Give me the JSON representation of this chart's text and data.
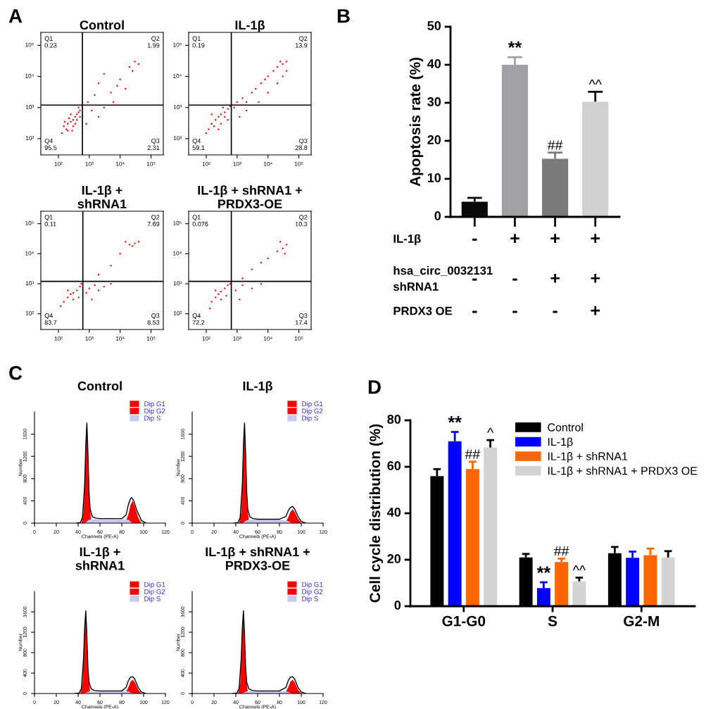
{
  "chart_data": [
    {
      "type": "scatter",
      "title": "Control",
      "log": "xy",
      "marker": "circle",
      "xlim": [
        27,
        250000
      ],
      "ylim": [
        30,
        260000
      ],
      "xticks": [
        {
          "value": 100,
          "label": "10²"
        },
        {
          "value": 1000,
          "label": "10³"
        },
        {
          "value": 10000,
          "label": "10⁴"
        },
        {
          "value": 100000,
          "label": "10⁵"
        }
      ],
      "yticks": [
        {
          "value": 100,
          "label": "10²"
        },
        {
          "value": 1000,
          "label": "10³"
        },
        {
          "value": 10000,
          "label": "10⁴"
        },
        {
          "value": 100000,
          "label": "10⁵"
        }
      ],
      "ref_lines": [
        {
          "axis": "x",
          "value": 600,
          "color": "#000000"
        },
        {
          "axis": "y",
          "value": 1200,
          "color": "#000000"
        }
      ],
      "annotations": [
        "Q1\n0.23",
        "Q2\n1.99",
        "Q3\n2.31",
        "Q4\n95.5",
        "A"
      ],
      "series": [
        {
          "color": "#ff0000",
          "x": [
            150,
            200,
            250,
            300,
            350,
            400,
            450,
            500,
            180,
            220,
            300,
            400,
            130,
            250,
            450,
            350,
            200,
            160,
            500,
            280,
            900,
            1500,
            3000,
            5000,
            8000,
            10000,
            20000,
            30000,
            40000,
            25000,
            2000,
            1200,
            2000,
            6000,
            15000,
            800,
            3000
          ],
          "values": [
            250,
            300,
            350,
            400,
            500,
            600,
            700,
            800,
            200,
            450,
            250,
            400,
            150,
            600,
            1000,
            300,
            180,
            350,
            500,
            180,
            1500,
            2500,
            1000,
            3000,
            5000,
            8000,
            20000,
            30000,
            25000,
            15000,
            6000,
            800,
            500,
            1500,
            4000,
            300,
            12000
          ]
        }
      ]
    },
    {
      "type": "scatter",
      "title": "IL-1β",
      "log": "xy",
      "marker": "circle",
      "xlim": [
        27,
        250000
      ],
      "ylim": [
        30,
        260000
      ],
      "xticks": [
        {
          "value": 100,
          "label": "10²"
        },
        {
          "value": 1000,
          "label": "10³"
        },
        {
          "value": 10000,
          "label": "10⁴"
        },
        {
          "value": 100000,
          "label": "10⁵"
        }
      ],
      "yticks": [
        {
          "value": 100,
          "label": "10²"
        },
        {
          "value": 1000,
          "label": "10³"
        },
        {
          "value": 10000,
          "label": "10⁴"
        },
        {
          "value": 100000,
          "label": "10⁵"
        }
      ],
      "ref_lines": [
        {
          "axis": "x",
          "value": 650,
          "color": "#000000"
        },
        {
          "axis": "y",
          "value": 1200,
          "color": "#000000"
        }
      ],
      "annotations": [
        "Q1\n0.19",
        "Q2\n13.9",
        "Q3\n28.8",
        "Q4\n59.1"
      ],
      "series": [
        {
          "color": "#ff0000",
          "x": [
            120,
            150,
            200,
            250,
            300,
            400,
            500,
            100,
            180,
            300,
            400,
            250,
            150,
            500,
            350,
            600,
            800,
            1000,
            1500,
            2000,
            3000,
            4000,
            6000,
            8000,
            10000,
            15000,
            20000,
            30000,
            40000,
            25000,
            2000,
            5000,
            10000,
            20000,
            30000,
            1200,
            40000
          ],
          "values": [
            200,
            300,
            400,
            500,
            600,
            700,
            900,
            150,
            250,
            300,
            500,
            200,
            600,
            400,
            1000,
            1100,
            1000,
            1500,
            2000,
            1500,
            3000,
            4000,
            6000,
            8000,
            10000,
            15000,
            20000,
            25000,
            30000,
            30000,
            800,
            1500,
            3000,
            6000,
            10000,
            500,
            15000
          ]
        }
      ]
    },
    {
      "type": "scatter",
      "title": "IL-1β +\nshRNA1",
      "log": "xy",
      "marker": "circle",
      "xlim": [
        27,
        250000
      ],
      "ylim": [
        30,
        260000
      ],
      "xticks": [
        {
          "value": 100,
          "label": "10²"
        },
        {
          "value": 1000,
          "label": "10³"
        },
        {
          "value": 10000,
          "label": "10⁴"
        },
        {
          "value": 100000,
          "label": "10⁵"
        }
      ],
      "yticks": [
        {
          "value": 100,
          "label": "10²"
        },
        {
          "value": 1000,
          "label": "10³"
        },
        {
          "value": 10000,
          "label": "10⁴"
        },
        {
          "value": 100000,
          "label": "10⁵"
        }
      ],
      "ref_lines": [
        {
          "axis": "x",
          "value": 620,
          "color": "#000000"
        },
        {
          "axis": "y",
          "value": 1200,
          "color": "#000000"
        }
      ],
      "annotations": [
        "Q1\n0.11",
        "Q2\n7.69",
        "Q3\n8.53",
        "Q4\n83.7"
      ],
      "series": [
        {
          "color": "#ff0000",
          "x": [
            150,
            200,
            250,
            300,
            400,
            500,
            120,
            300,
            200,
            450,
            550,
            800,
            1000,
            1500,
            2000,
            3000,
            1200,
            5000,
            2000,
            5000,
            10000,
            20000,
            30000,
            25000,
            40000,
            15000
          ],
          "values": [
            250,
            350,
            450,
            500,
            600,
            800,
            180,
            300,
            600,
            350,
            1000,
            500,
            700,
            900,
            600,
            800,
            300,
            1000,
            2000,
            4000,
            10000,
            20000,
            22000,
            18000,
            25000,
            25000
          ]
        }
      ]
    },
    {
      "type": "scatter",
      "title": "IL-1β + shRNA1 +\nPRDX3-OE",
      "log": "xy",
      "marker": "circle",
      "xlim": [
        27,
        250000
      ],
      "ylim": [
        30,
        260000
      ],
      "xticks": [
        {
          "value": 100,
          "label": "10²"
        },
        {
          "value": 1000,
          "label": "10³"
        },
        {
          "value": 10000,
          "label": "10⁴"
        },
        {
          "value": 100000,
          "label": "10⁵"
        }
      ],
      "yticks": [
        {
          "value": 100,
          "label": "10²"
        },
        {
          "value": 1000,
          "label": "10³"
        },
        {
          "value": 10000,
          "label": "10⁴"
        },
        {
          "value": 100000,
          "label": "10⁵"
        }
      ],
      "ref_lines": [
        {
          "axis": "x",
          "value": 650,
          "color": "#000000"
        },
        {
          "axis": "y",
          "value": 1200,
          "color": "#000000"
        }
      ],
      "annotations": [
        "Q1\n0.076",
        "Q2\n10.3",
        "Q3\n17.4",
        "Q4\n72.2"
      ],
      "series": [
        {
          "color": "#ff0000",
          "x": [
            150,
            200,
            250,
            300,
            400,
            500,
            130,
            300,
            200,
            450,
            600,
            900,
            1500,
            3000,
            6000,
            1200,
            1500,
            3000,
            6000,
            10000,
            20000,
            30000,
            40000,
            35000,
            25000
          ],
          "values": [
            250,
            350,
            450,
            550,
            700,
            900,
            150,
            300,
            600,
            400,
            1000,
            600,
            900,
            700,
            1000,
            300,
            1500,
            3000,
            5000,
            7000,
            12000,
            15000,
            20000,
            10000,
            25000
          ]
        }
      ]
    },
    {
      "type": "bar",
      "ylabel": "Apoptosis rate (%)",
      "ylim": [
        0,
        50
      ],
      "yticks": [
        0,
        10,
        20,
        30,
        40,
        50
      ],
      "categories": [
        "-\n-\n-",
        "+\n-\n-",
        "+\n+\n-",
        "+\n+\n+"
      ],
      "values": [
        4.0,
        40.0,
        15.3,
        30.3
      ],
      "colors": [
        "#0a0a0a",
        "#a0a0a5",
        "#7a7a7a",
        "#d0d0d0"
      ],
      "errors": [
        [
          4.0,
          5.0
        ],
        [
          40.0,
          42.0
        ],
        [
          15.3,
          16.9
        ],
        [
          30.3,
          32.9
        ]
      ],
      "value_labels": [
        null,
        "**",
        "##",
        "^^"
      ],
      "annotations": [
        "B",
        "IL-1β",
        "hsa_circ_0032131\nshRNA1",
        "PRDX3 OE"
      ]
    },
    {
      "type": "area",
      "title": "Control",
      "xlabel": "Channels (PE-A)",
      "ylabel": "Number",
      "xlim": [
        0,
        120
      ],
      "ylim": [
        0,
        2000
      ],
      "xticks": [
        0,
        20,
        40,
        60,
        80,
        100,
        120
      ],
      "yticks": [
        0,
        400,
        800,
        1200,
        1600
      ],
      "legend": "top right",
      "annotations": [
        "C"
      ],
      "series": [
        {
          "name": "Dip G1",
          "color": "#ff0000",
          "x": [
            43,
            45,
            46,
            47,
            48,
            49,
            50,
            52
          ],
          "values": [
            0,
            200,
            700,
            1400,
            1800,
            1200,
            500,
            0
          ]
        },
        {
          "name": "Dip G2",
          "color": "#ff0000",
          "x": [
            83,
            86,
            88,
            90,
            92,
            95,
            98
          ],
          "values": [
            0,
            150,
            330,
            400,
            300,
            100,
            0
          ]
        },
        {
          "name": "Dip S",
          "color": "#c8c8f0",
          "x": [
            46,
            50,
            55,
            60,
            70,
            80,
            86,
            90
          ],
          "values": [
            0,
            60,
            70,
            70,
            70,
            70,
            60,
            0
          ]
        },
        {
          "type": "line",
          "color": "#000000",
          "x": [
            38,
            42,
            44,
            46,
            47,
            48,
            49,
            50,
            51,
            53,
            56,
            60,
            70,
            80,
            84,
            86,
            88,
            89,
            91,
            94,
            98,
            102
          ],
          "values": [
            0,
            10,
            100,
            700,
            1400,
            1800,
            1250,
            550,
            250,
            120,
            90,
            80,
            80,
            80,
            150,
            330,
            440,
            460,
            400,
            220,
            50,
            0
          ]
        }
      ]
    },
    {
      "type": "area",
      "title": "IL-1β",
      "xlabel": "Channels (PE-A)",
      "ylabel": "Number",
      "xlim": [
        0,
        120
      ],
      "ylim": [
        0,
        2000
      ],
      "xticks": [
        0,
        20,
        40,
        60,
        80,
        100,
        120
      ],
      "yticks": [
        0,
        400,
        800,
        1200,
        1600
      ],
      "legend": "top right",
      "series": [
        {
          "name": "Dip G1",
          "color": "#ff0000",
          "x": [
            43,
            45,
            46,
            47,
            48,
            49,
            50,
            52
          ],
          "values": [
            0,
            200,
            700,
            1400,
            1800,
            1200,
            500,
            0
          ]
        },
        {
          "name": "Dip G2",
          "color": "#ff0000",
          "x": [
            85,
            88,
            90,
            92,
            94,
            97,
            100
          ],
          "values": [
            0,
            100,
            200,
            250,
            200,
            80,
            0
          ]
        },
        {
          "name": "Dip S",
          "color": "#c8c8f0",
          "x": [
            46,
            50,
            55,
            60,
            70,
            80,
            86,
            92
          ],
          "values": [
            0,
            50,
            60,
            60,
            60,
            60,
            50,
            0
          ]
        },
        {
          "type": "line",
          "color": "#000000",
          "x": [
            38,
            42,
            44,
            46,
            47,
            48,
            49,
            50,
            51,
            53,
            56,
            60,
            70,
            80,
            86,
            88,
            90,
            92,
            94,
            97,
            100,
            104
          ],
          "values": [
            0,
            10,
            100,
            700,
            1400,
            1800,
            1250,
            550,
            240,
            110,
            80,
            70,
            70,
            70,
            120,
            220,
            280,
            300,
            250,
            120,
            30,
            0
          ]
        }
      ]
    },
    {
      "type": "area",
      "title": "IL-1β +\nshRNA1",
      "xlabel": "Channels (PE-A)",
      "ylabel": "Number",
      "xlim": [
        0,
        120
      ],
      "ylim": [
        0,
        2000
      ],
      "xticks": [
        0,
        20,
        40,
        60,
        80,
        100,
        120
      ],
      "yticks": [
        0,
        400,
        800,
        1200,
        1600
      ],
      "legend": "top right",
      "series": [
        {
          "name": "Dip G1",
          "color": "#ff0000",
          "x": [
            42,
            44,
            45,
            46,
            47,
            48,
            49,
            51
          ],
          "values": [
            0,
            200,
            700,
            1300,
            1620,
            1100,
            450,
            0
          ]
        },
        {
          "name": "Dip G2",
          "color": "#ff0000",
          "x": [
            83,
            86,
            88,
            90,
            92,
            95,
            98
          ],
          "values": [
            0,
            120,
            230,
            270,
            220,
            80,
            0
          ]
        },
        {
          "name": "Dip S",
          "color": "#c8c8f0",
          "x": [
            45,
            50,
            55,
            60,
            70,
            80,
            86,
            90
          ],
          "values": [
            0,
            40,
            50,
            50,
            50,
            50,
            40,
            0
          ]
        },
        {
          "type": "line",
          "color": "#000000",
          "x": [
            37,
            41,
            43,
            45,
            46,
            47,
            48,
            49,
            50,
            52,
            55,
            60,
            70,
            80,
            84,
            86,
            88,
            90,
            92,
            95,
            98,
            102
          ],
          "values": [
            0,
            10,
            100,
            700,
            1300,
            1620,
            1150,
            500,
            220,
            90,
            60,
            50,
            50,
            50,
            120,
            250,
            320,
            330,
            280,
            120,
            30,
            0
          ]
        }
      ]
    },
    {
      "type": "area",
      "title": "IL-1β + shRNA1 +\nPRDX3-OE",
      "xlabel": "Channels (PE-A)",
      "ylabel": "Number",
      "xlim": [
        0,
        120
      ],
      "ylim": [
        0,
        2000
      ],
      "xticks": [
        0,
        20,
        40,
        60,
        80,
        100,
        120
      ],
      "yticks": [
        0,
        400,
        800,
        1200,
        1600
      ],
      "legend": "top right",
      "series": [
        {
          "name": "Dip G1",
          "color": "#ff0000",
          "x": [
            42,
            44,
            45,
            46,
            47,
            48,
            49,
            51
          ],
          "values": [
            0,
            200,
            700,
            1300,
            1620,
            1100,
            450,
            0
          ]
        },
        {
          "name": "Dip G2",
          "color": "#ff0000",
          "x": [
            85,
            88,
            90,
            92,
            94,
            97,
            100
          ],
          "values": [
            0,
            120,
            230,
            270,
            220,
            80,
            0
          ]
        },
        {
          "name": "Dip S",
          "color": "#c8c8f0",
          "x": [
            45,
            50,
            55,
            60,
            70,
            80,
            86,
            92
          ],
          "values": [
            0,
            40,
            50,
            50,
            50,
            50,
            40,
            0
          ]
        },
        {
          "type": "line",
          "color": "#000000",
          "x": [
            37,
            41,
            43,
            45,
            46,
            47,
            48,
            49,
            50,
            52,
            55,
            60,
            70,
            80,
            86,
            88,
            90,
            92,
            94,
            97,
            100,
            104
          ],
          "values": [
            0,
            10,
            100,
            700,
            1300,
            1620,
            1150,
            500,
            220,
            90,
            60,
            50,
            50,
            50,
            120,
            250,
            320,
            330,
            280,
            120,
            30,
            0
          ]
        }
      ]
    },
    {
      "type": "bar",
      "ylabel": "Cell cycle distribution (%)",
      "ylim": [
        0,
        80
      ],
      "yticks": [
        0,
        20,
        40,
        60,
        80
      ],
      "legend": "top right",
      "categories": [
        "G1-G0",
        "S",
        "G2-M"
      ],
      "annotations": [
        "D"
      ],
      "series": [
        {
          "name": "Control",
          "color": "#000000",
          "values": [
            56,
            21,
            22.8
          ],
          "errors": [
            [
              56,
              59
            ],
            [
              21,
              22.5
            ],
            [
              22.8,
              25.5
            ]
          ],
          "value_labels": [
            null,
            null,
            null
          ]
        },
        {
          "name": "IL-1β",
          "color": "#0000ff",
          "values": [
            71,
            7.8,
            20.8
          ],
          "errors": [
            [
              71,
              75
            ],
            [
              7.8,
              10.3
            ],
            [
              20.8,
              23.5
            ]
          ],
          "value_labels": [
            "**",
            "**",
            null
          ]
        },
        {
          "name": "IL-1β + shRNA1",
          "color": "#ff6600",
          "values": [
            59,
            19,
            22
          ],
          "errors": [
            [
              59,
              62.2
            ],
            [
              19,
              20.5
            ],
            [
              22,
              24.8
            ]
          ],
          "value_labels": [
            "##",
            "##",
            null
          ]
        },
        {
          "name": "IL-1β + shRNA1 + PRDX3 OE",
          "color": "#d3d3d3",
          "values": [
            68.3,
            10.7,
            21
          ],
          "errors": [
            [
              68.3,
              71.5
            ],
            [
              10.7,
              12.3
            ],
            [
              21,
              23.7
            ]
          ],
          "value_labels": [
            "^",
            "^^",
            null
          ]
        }
      ]
    }
  ]
}
